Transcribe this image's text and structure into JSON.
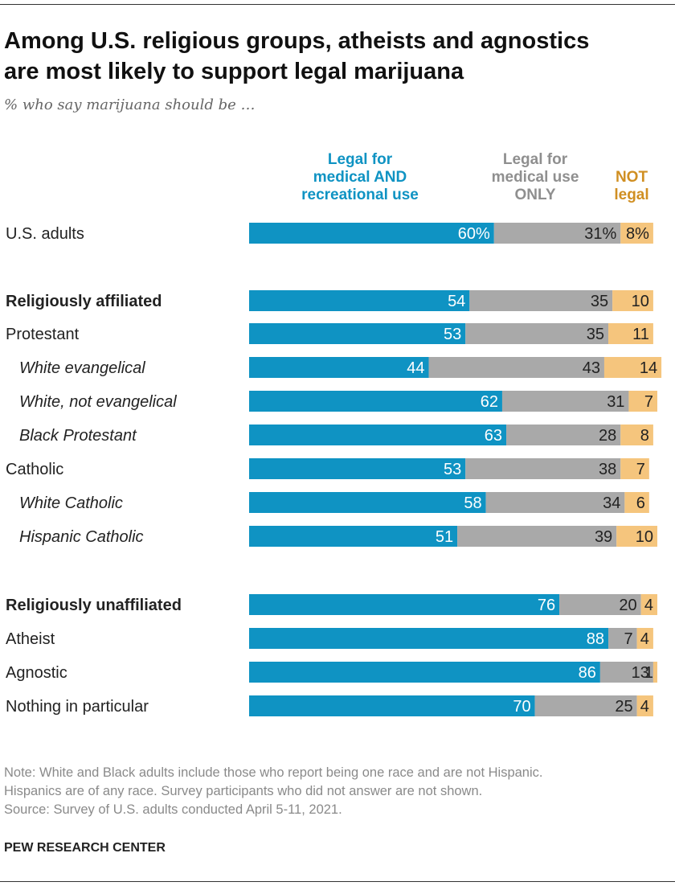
{
  "title_line1": "Among U.S. religious groups, atheists and agnostics",
  "title_line2": "are most likely to support legal marijuana",
  "subtitle": "% who say marijuana should be …",
  "colors": {
    "legal_both": "#0f93c3",
    "medical_only": "#a9a9a9",
    "not_legal": "#f5c57d",
    "legal_both_text": "#0f93c3",
    "medical_only_text": "#8f8f8f",
    "not_legal_text": "#d08f22"
  },
  "chart_data": {
    "type": "bar",
    "orientation": "horizontal",
    "stacked": true,
    "legend_placement": "top",
    "series": [
      {
        "name": "Legal for medical AND recreational use",
        "legend_lines": [
          "Legal for",
          "medical AND",
          "recreational use"
        ],
        "values": [
          60,
          54,
          53,
          44,
          62,
          63,
          53,
          58,
          51,
          76,
          88,
          86,
          70
        ]
      },
      {
        "name": "Legal for medical use ONLY",
        "legend_lines": [
          "Legal for",
          "medical use",
          "ONLY"
        ],
        "values": [
          31,
          35,
          35,
          43,
          31,
          28,
          38,
          34,
          39,
          20,
          7,
          13,
          25
        ]
      },
      {
        "name": "NOT legal",
        "legend_lines": [
          "NOT",
          "legal"
        ],
        "values": [
          8,
          10,
          11,
          14,
          7,
          8,
          7,
          6,
          10,
          4,
          4,
          1,
          4
        ]
      }
    ],
    "categories": [
      "U.S. adults",
      "Religiously affiliated",
      "Protestant",
      "White evangelical",
      "White, not evangelical",
      "Black Protestant",
      "Catholic",
      "White Catholic",
      "Hispanic Catholic",
      "Religiously unaffiliated",
      "Atheist",
      "Agnostic",
      "Nothing in particular"
    ],
    "category_styles": [
      "normal",
      "bold",
      "normal",
      "italic",
      "italic",
      "italic",
      "normal",
      "italic",
      "italic",
      "bold",
      "normal",
      "normal",
      "normal"
    ],
    "value_suffix_first_row": "%",
    "xlim": [
      0,
      100
    ]
  },
  "notes": [
    "Note: White and Black adults include those who report being one race and are not Hispanic.",
    "Hispanics are of any race. Survey participants who did not answer are not shown.",
    "Source: Survey of U.S. adults conducted April 5-11, 2021."
  ],
  "brand": "PEW RESEARCH CENTER"
}
